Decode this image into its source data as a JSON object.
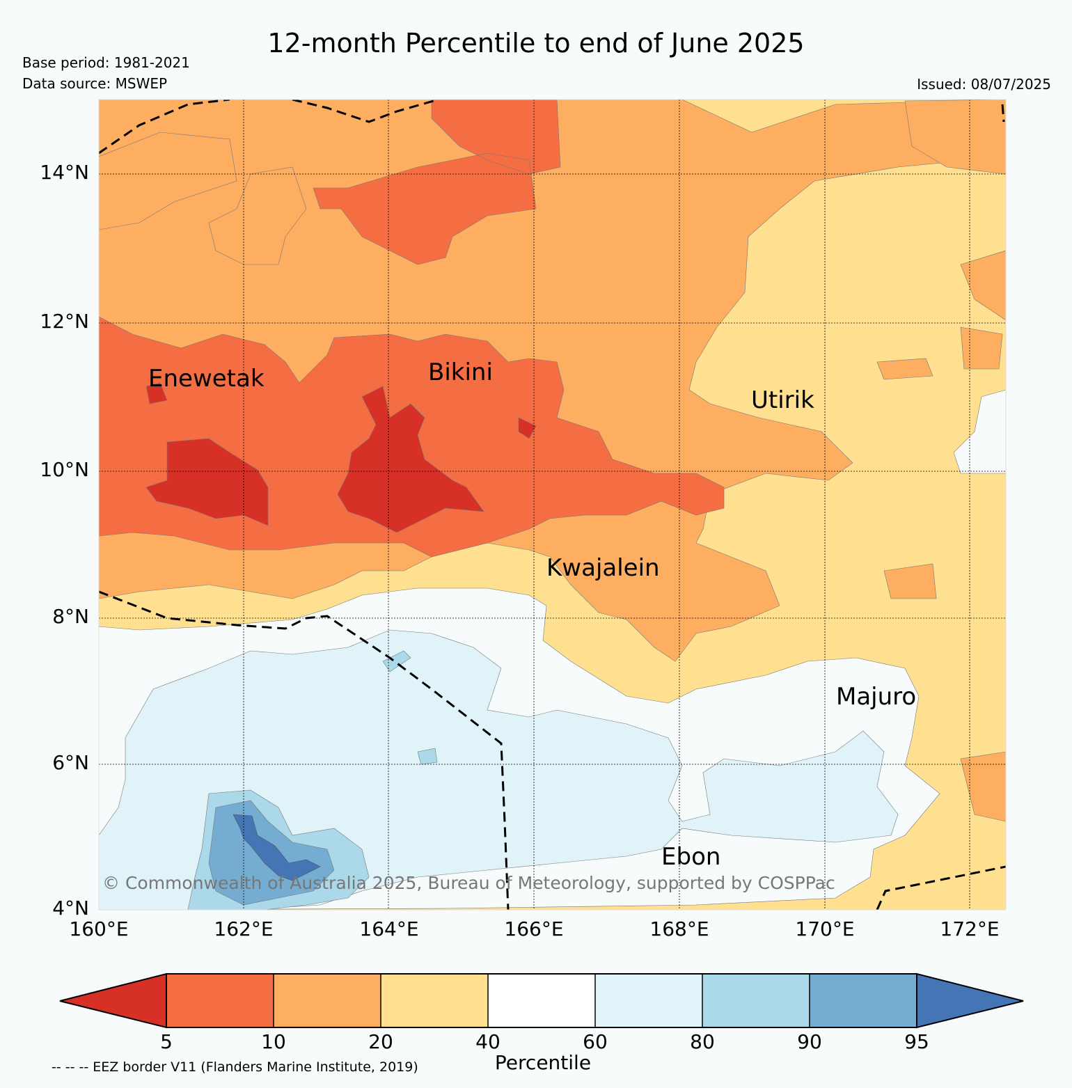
{
  "header": {
    "title": "12-month Percentile to end of June 2025",
    "base_period": "Base period: 1981-2021",
    "data_source": "Data source: MSWEP",
    "issued": "Issued: 08/07/2025"
  },
  "map": {
    "lat_ticks": [
      "14°N",
      "12°N",
      "10°N",
      "8°N",
      "6°N",
      "4°N"
    ],
    "lon_ticks": [
      "160°E",
      "162°E",
      "164°E",
      "166°E",
      "168°E",
      "170°E",
      "172°E"
    ],
    "places": [
      "Enewetak",
      "Bikini",
      "Utirik",
      "Kwajalein",
      "Majuro",
      "Ebon"
    ],
    "copyright": "© Commonwealth of Australia 2025, Bureau of Meteorology, supported by COSPPac"
  },
  "colorbar": {
    "ticks": [
      "5",
      "10",
      "20",
      "40",
      "60",
      "80",
      "90",
      "95"
    ],
    "label": "Percentile",
    "colors": [
      "#d73027",
      "#f46d43",
      "#fdae61",
      "#fee090",
      "#f7fbfc",
      "#e0f3f8",
      "#abd9e9",
      "#74add1",
      "#4575b4"
    ]
  },
  "legend": {
    "eez_note": "-- -- -- EEZ border V11 (Flanders Marine Institute, 2019)"
  }
}
